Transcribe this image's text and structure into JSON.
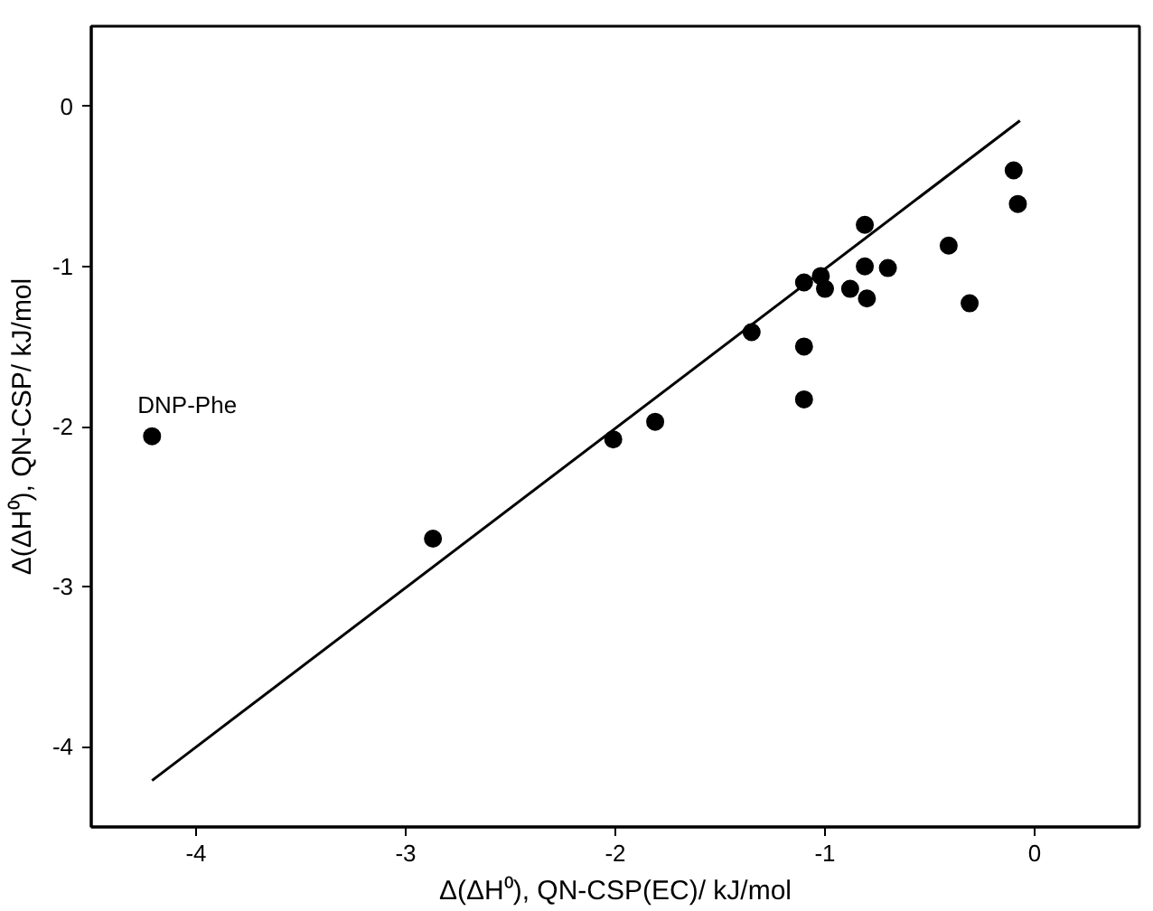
{
  "chart_data": {
    "type": "scatter",
    "xlabel": "Δ(ΔH⁰), QN-CSP(EC)/ kJ/mol",
    "ylabel": "Δ(ΔH⁰), QN-CSP/ kJ/mol",
    "xlim": [
      -4.5,
      0.5
    ],
    "ylim": [
      -4.5,
      0.5
    ],
    "xticks": [
      -4,
      -3,
      -2,
      -1,
      0
    ],
    "yticks": [
      -4,
      -3,
      -2,
      -1,
      0
    ],
    "grid": false,
    "marker": "circle",
    "series": [
      {
        "color": "#000000",
        "x": [
          -4.21,
          -2.87,
          -2.01,
          -1.81,
          -1.35,
          -1.1,
          -1.1,
          -1.1,
          -1.02,
          -1.0,
          -0.88,
          -0.81,
          -0.81,
          -0.8,
          -0.7,
          -0.41,
          -0.31,
          -0.1,
          -0.08
        ],
        "values": [
          -2.06,
          -2.7,
          -2.08,
          -1.97,
          -1.41,
          -1.1,
          -1.5,
          -1.83,
          -1.06,
          -1.14,
          -1.14,
          -0.74,
          -1.0,
          -1.2,
          -1.01,
          -0.87,
          -1.23,
          -0.4,
          -0.61
        ]
      },
      {
        "type": "line",
        "color": "#000000",
        "line_style": "solid",
        "marker": "none",
        "x": [
          -4.21,
          -0.07
        ],
        "values": [
          -4.21,
          -0.09
        ]
      }
    ],
    "annotations": [
      {
        "text": "DNP-Phe",
        "x": -4.21,
        "y": -2.06
      }
    ]
  }
}
